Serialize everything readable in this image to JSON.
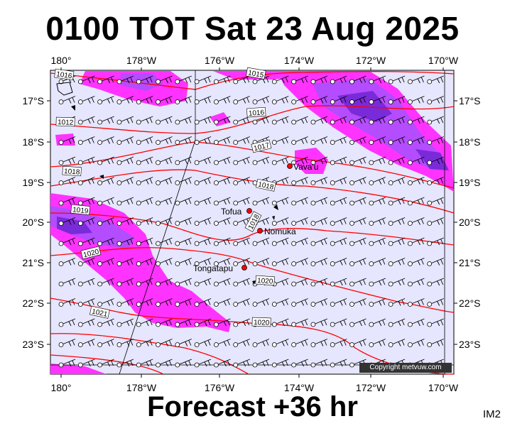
{
  "header": {
    "title": "0100 TOT Sat 23 Aug 2025"
  },
  "footer": {
    "forecast": "Forecast +36 hr",
    "image_id": "IM2"
  },
  "map": {
    "top_lon_labels": [
      "180°",
      "178°W",
      "176°W",
      "174°W",
      "172°W",
      "170°W"
    ],
    "bottom_lon_labels": [
      "180°",
      "178°W",
      "176°W",
      "174°W",
      "172°W",
      "170°W"
    ],
    "lat_labels": [
      "17°S",
      "18°S",
      "19°S",
      "20°S",
      "21°S",
      "22°S",
      "23°S"
    ],
    "places": [
      {
        "name": "Vava'u"
      },
      {
        "name": "Tofua"
      },
      {
        "name": "Nomuka"
      },
      {
        "name": "Tongatapu"
      }
    ],
    "isobar_labels": [
      "1016",
      "1015",
      "1012",
      "1016",
      "1017",
      "1018",
      "1018",
      "1019",
      "1020",
      "1020",
      "1021",
      "1020",
      "1018"
    ],
    "copyright": "Copyright metvuw.com",
    "colors": {
      "sea": "#e6e6ff",
      "rain_light": "#ff33ff",
      "rain_mid": "#b44cff",
      "rain_heavy": "#7a2bd9",
      "isobar": "#ff0000",
      "barb": "#000000"
    }
  }
}
